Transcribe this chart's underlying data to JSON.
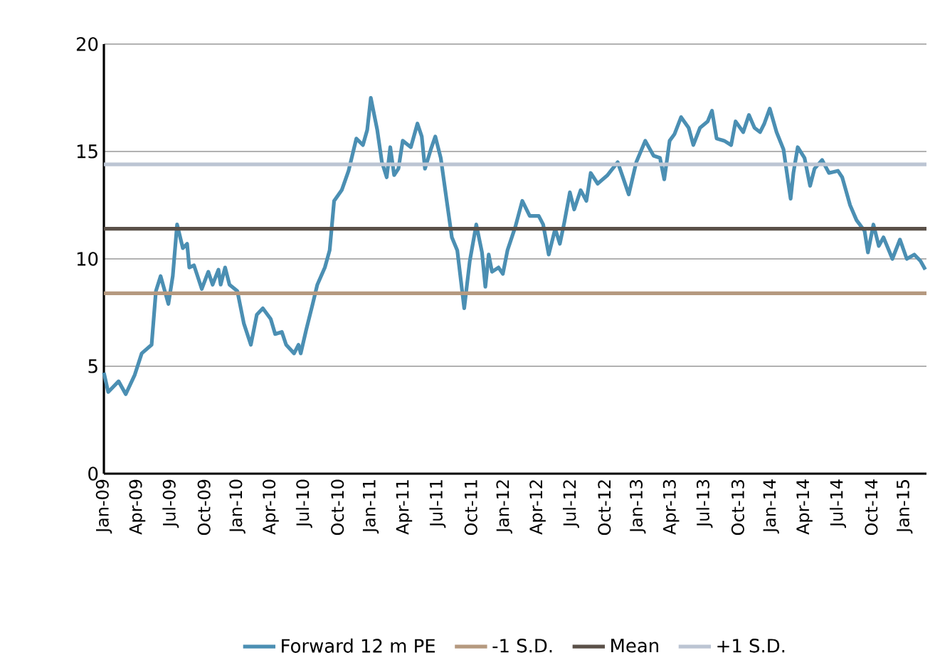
{
  "chart_data": {
    "type": "line",
    "x": [
      "2009-01-01",
      "2009-01-13",
      "2009-02-10",
      "2009-02-28",
      "2009-03-25",
      "2009-04-13",
      "2009-05-10",
      "2009-05-22",
      "2009-06-04",
      "2009-06-25",
      "2009-07-07",
      "2009-07-19",
      "2009-08-04",
      "2009-08-16",
      "2009-08-22",
      "2009-09-04",
      "2009-09-25",
      "2009-10-13",
      "2009-10-25",
      "2009-11-10",
      "2009-11-16",
      "2009-11-28",
      "2009-12-10",
      "2010-01-01",
      "2010-01-19",
      "2010-02-07",
      "2010-02-22",
      "2010-03-10",
      "2010-04-01",
      "2010-04-13",
      "2010-05-01",
      "2010-05-13",
      "2010-06-04",
      "2010-06-16",
      "2010-06-22",
      "2010-07-07",
      "2010-07-25",
      "2010-08-07",
      "2010-08-28",
      "2010-09-10",
      "2010-09-22",
      "2010-10-13",
      "2010-11-01",
      "2010-11-22",
      "2010-12-10",
      "2010-12-22",
      "2011-01-01",
      "2011-01-19",
      "2011-02-01",
      "2011-02-13",
      "2011-02-22",
      "2011-03-04",
      "2011-03-16",
      "2011-03-28",
      "2011-04-19",
      "2011-05-07",
      "2011-05-19",
      "2011-05-28",
      "2011-06-13",
      "2011-06-25",
      "2011-07-10",
      "2011-07-25",
      "2011-08-10",
      "2011-08-25",
      "2011-09-13",
      "2011-09-28",
      "2011-10-16",
      "2011-11-01",
      "2011-11-10",
      "2011-11-19",
      "2011-11-28",
      "2011-12-16",
      "2011-12-28",
      "2012-01-10",
      "2012-02-01",
      "2012-02-19",
      "2012-03-10",
      "2012-04-04",
      "2012-04-16",
      "2012-05-01",
      "2012-05-19",
      "2012-06-01",
      "2012-06-13",
      "2012-06-28",
      "2012-07-10",
      "2012-07-28",
      "2012-08-13",
      "2012-08-25",
      "2012-09-13",
      "2012-10-10",
      "2012-11-07",
      "2012-11-19",
      "2012-12-07",
      "2012-12-28",
      "2013-01-22",
      "2013-02-13",
      "2013-03-01",
      "2013-03-13",
      "2013-03-28",
      "2013-04-10",
      "2013-04-28",
      "2013-05-19",
      "2013-06-01",
      "2013-06-19",
      "2013-07-10",
      "2013-07-22",
      "2013-08-04",
      "2013-08-25",
      "2013-09-13",
      "2013-09-25",
      "2013-10-16",
      "2013-11-01",
      "2013-11-16",
      "2013-12-01",
      "2013-12-13",
      "2013-12-28",
      "2014-01-16",
      "2014-02-04",
      "2014-02-22",
      "2014-03-01",
      "2014-03-13",
      "2014-04-01",
      "2014-04-16",
      "2014-04-28",
      "2014-05-19",
      "2014-06-07",
      "2014-07-01",
      "2014-07-13",
      "2014-08-04",
      "2014-08-22",
      "2014-09-13",
      "2014-09-22",
      "2014-10-07",
      "2014-10-22",
      "2014-11-04",
      "2014-11-28",
      "2014-12-19",
      "2015-01-07",
      "2015-01-28",
      "2015-02-13",
      "2015-02-25"
    ],
    "series": [
      {
        "name": "Forward 12 m PE",
        "color": "#4b8fb3",
        "values": [
          4.7,
          3.8,
          4.3,
          3.7,
          4.6,
          5.6,
          6.0,
          8.5,
          9.2,
          7.9,
          9.2,
          11.6,
          10.5,
          10.7,
          9.6,
          9.7,
          8.6,
          9.4,
          8.8,
          9.5,
          8.8,
          9.6,
          8.8,
          8.5,
          7.0,
          6.0,
          7.4,
          7.7,
          7.2,
          6.5,
          6.6,
          6.0,
          5.6,
          6.0,
          5.6,
          6.7,
          7.9,
          8.8,
          9.6,
          10.4,
          12.7,
          13.2,
          14.1,
          15.6,
          15.3,
          16.0,
          17.5,
          16.0,
          14.5,
          13.8,
          15.2,
          13.9,
          14.2,
          15.5,
          15.2,
          16.3,
          15.7,
          14.2,
          15.1,
          15.7,
          14.7,
          12.9,
          11.0,
          10.4,
          7.7,
          9.9,
          11.6,
          10.3,
          8.7,
          10.2,
          9.4,
          9.6,
          9.3,
          10.4,
          11.5,
          12.7,
          12.0,
          12.0,
          11.6,
          10.2,
          11.4,
          10.7,
          11.7,
          13.1,
          12.3,
          13.2,
          12.7,
          14.0,
          13.5,
          13.9,
          14.5,
          13.9,
          13.0,
          14.5,
          15.5,
          14.8,
          14.7,
          13.7,
          15.5,
          15.8,
          16.6,
          16.1,
          15.3,
          16.1,
          16.4,
          16.9,
          15.6,
          15.5,
          15.3,
          16.4,
          15.9,
          16.7,
          16.1,
          15.9,
          16.3,
          17.0,
          15.9,
          15.1,
          12.8,
          14.0,
          15.2,
          14.7,
          13.4,
          14.2,
          14.6,
          14.0,
          14.1,
          13.8,
          12.5,
          11.8,
          11.3,
          10.3,
          11.6,
          10.6,
          11.0,
          10.0,
          10.9,
          10.0,
          10.2,
          9.9,
          9.5
        ]
      }
    ],
    "ref_lines": [
      {
        "axis": "y",
        "value": 8.4,
        "label": "-1 S.D.",
        "color": "#b5997f"
      },
      {
        "axis": "y",
        "value": 11.4,
        "label": "Mean",
        "color": "#5a5048"
      },
      {
        "axis": "y",
        "value": 14.4,
        "label": "+1 S.D.",
        "color": "#bcc5d3"
      }
    ],
    "xlim": [
      "2009-01-01",
      "2015-02-28"
    ],
    "xticks": [
      {
        "value": "2009-01",
        "label": "Jan-09"
      },
      {
        "value": "2009-04",
        "label": "Apr-09"
      },
      {
        "value": "2009-07",
        "label": "Jul-09"
      },
      {
        "value": "2009-10",
        "label": "Oct-09"
      },
      {
        "value": "2010-01",
        "label": "Jan-10"
      },
      {
        "value": "2010-04",
        "label": "Apr-10"
      },
      {
        "value": "2010-07",
        "label": "Jul-10"
      },
      {
        "value": "2010-10",
        "label": "Oct-10"
      },
      {
        "value": "2011-01",
        "label": "Jan-11"
      },
      {
        "value": "2011-04",
        "label": "Apr-11"
      },
      {
        "value": "2011-07",
        "label": "Jul-11"
      },
      {
        "value": "2011-10",
        "label": "Oct-11"
      },
      {
        "value": "2012-01",
        "label": "Jan-12"
      },
      {
        "value": "2012-04",
        "label": "Apr-12"
      },
      {
        "value": "2012-07",
        "label": "Jul-12"
      },
      {
        "value": "2012-10",
        "label": "Oct-12"
      },
      {
        "value": "2013-01",
        "label": "Jan-13"
      },
      {
        "value": "2013-04",
        "label": "Apr-13"
      },
      {
        "value": "2013-07",
        "label": "Jul-13"
      },
      {
        "value": "2013-10",
        "label": "Oct-13"
      },
      {
        "value": "2014-01",
        "label": "Jan-14"
      },
      {
        "value": "2014-04",
        "label": "Apr-14"
      },
      {
        "value": "2014-07",
        "label": "Jul-14"
      },
      {
        "value": "2014-10",
        "label": "Oct-14"
      },
      {
        "value": "2015-01",
        "label": "Jan-15"
      }
    ],
    "ylim": [
      0,
      20
    ],
    "yticks": [
      0,
      5,
      10,
      15,
      20
    ],
    "grid": "y",
    "legend": "bottom",
    "marker": "none",
    "line_style": "solid"
  }
}
